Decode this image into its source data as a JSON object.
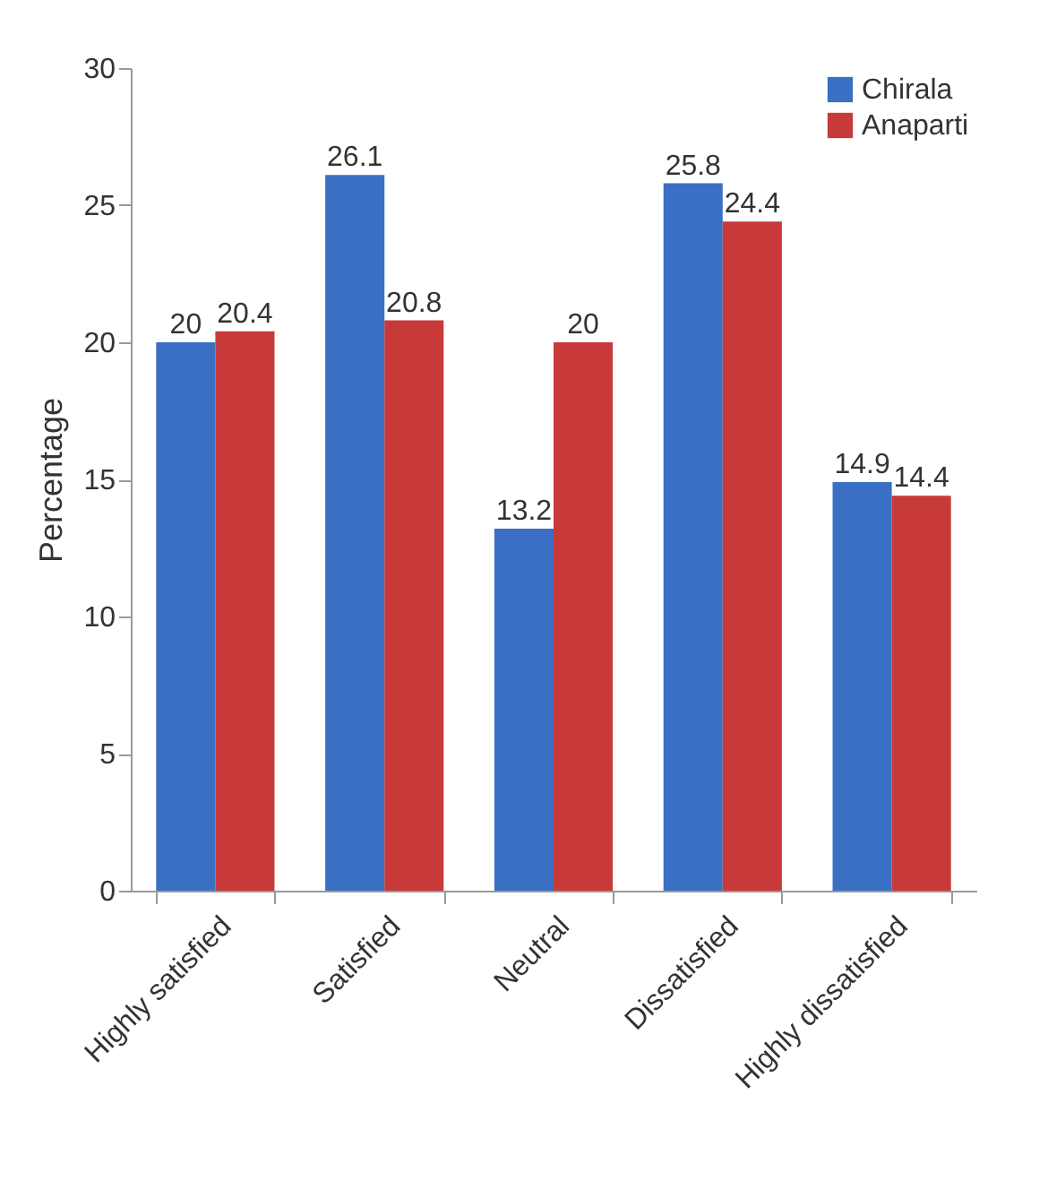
{
  "chart_data": {
    "type": "bar",
    "ylabel": "Percentage",
    "categories": [
      "Highly satisfied",
      "Satisfied",
      "Neutral",
      "Dissatisfied",
      "Highly dissatisfied"
    ],
    "series": [
      {
        "name": "Chirala",
        "color": "#3a6fc4",
        "values": [
          20,
          26.1,
          13.2,
          25.8,
          14.9
        ]
      },
      {
        "name": "Anaparti",
        "color": "#c83a3a",
        "values": [
          20.4,
          20.8,
          20,
          24.4,
          14.4
        ]
      }
    ],
    "ylim": [
      0,
      30
    ],
    "yticks": [
      0,
      5,
      10,
      15,
      20,
      25,
      30
    ],
    "grid": false,
    "legend": "top right",
    "data_labels": true
  }
}
